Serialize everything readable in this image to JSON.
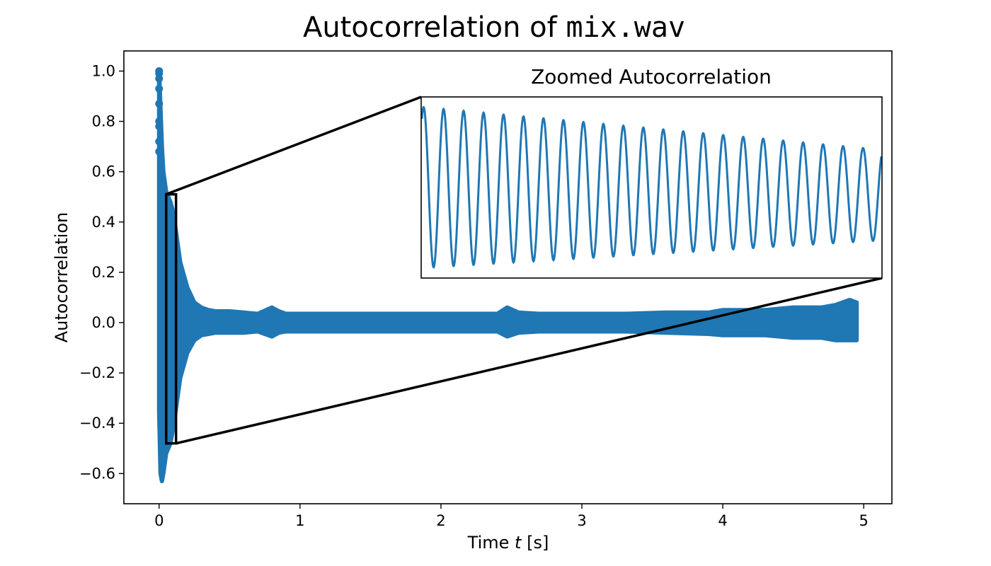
{
  "chart_data": {
    "type": "line",
    "title": {
      "prefix": "Autocorrelation of ",
      "filename": "mix.wav"
    },
    "xlabel": {
      "prefix": "Time ",
      "variable": "t",
      "suffix": " [s]"
    },
    "ylabel": "Autocorrelation",
    "xlim": [
      -0.25,
      5.2
    ],
    "ylim": [
      -0.72,
      1.08
    ],
    "xticks": [
      0,
      1,
      2,
      3,
      4,
      5
    ],
    "yticks": [
      -0.6,
      -0.4,
      -0.2,
      0.0,
      0.2,
      0.4,
      0.6,
      0.8,
      1.0
    ],
    "xtick_labels": [
      "0",
      "1",
      "2",
      "3",
      "4",
      "5"
    ],
    "ytick_labels": [
      "−0.6",
      "−0.4",
      "−0.2",
      "0.0",
      "0.2",
      "0.4",
      "0.6",
      "0.8",
      "1.0"
    ],
    "series_color": "#1f77b4",
    "series": [
      {
        "envelope": {
          "x": [
            0.0,
            0.01,
            0.02,
            0.03,
            0.05,
            0.08,
            0.1,
            0.13,
            0.15,
            0.2,
            0.25,
            0.3,
            0.35,
            0.4,
            0.5,
            0.6,
            0.7,
            0.8,
            0.85,
            0.9,
            1.0,
            1.2,
            1.5,
            1.8,
            2.0,
            2.2,
            2.4,
            2.47,
            2.55,
            2.7,
            3.0,
            3.3,
            3.6,
            3.9,
            4.0,
            4.3,
            4.5,
            4.7,
            4.8,
            4.9,
            4.95
          ],
          "upper": [
            1.0,
            0.85,
            0.7,
            0.6,
            0.52,
            0.48,
            0.44,
            0.32,
            0.24,
            0.14,
            0.08,
            0.06,
            0.05,
            0.045,
            0.045,
            0.04,
            0.035,
            0.06,
            0.045,
            0.035,
            0.035,
            0.035,
            0.035,
            0.035,
            0.035,
            0.035,
            0.035,
            0.06,
            0.04,
            0.035,
            0.035,
            0.035,
            0.04,
            0.04,
            0.05,
            0.05,
            0.06,
            0.06,
            0.07,
            0.09,
            0.08
          ],
          "lower": [
            -0.35,
            -0.6,
            -0.63,
            -0.6,
            -0.52,
            -0.48,
            -0.42,
            -0.3,
            -0.22,
            -0.12,
            -0.07,
            -0.05,
            -0.045,
            -0.04,
            -0.04,
            -0.04,
            -0.035,
            -0.055,
            -0.04,
            -0.035,
            -0.035,
            -0.035,
            -0.035,
            -0.035,
            -0.035,
            -0.035,
            -0.035,
            -0.055,
            -0.04,
            -0.035,
            -0.035,
            -0.035,
            -0.04,
            -0.045,
            -0.05,
            -0.05,
            -0.06,
            -0.06,
            -0.07,
            -0.07,
            -0.07
          ]
        },
        "marker_points": {
          "x": [
            0.0,
            0.0,
            0.0,
            0.0,
            0.0,
            0.0,
            0.0,
            0.0,
            0.0
          ],
          "y": [
            1.0,
            0.99,
            0.97,
            0.93,
            0.87,
            0.8,
            0.78,
            0.72,
            0.68
          ]
        }
      }
    ],
    "zoom_box": {
      "x": [
        0.05,
        0.12
      ],
      "y": [
        -0.48,
        0.51
      ]
    },
    "inset": {
      "title": "Zoomed Autocorrelation",
      "cycles": 23,
      "y_range": [
        0.18,
        0.9
      ],
      "peaks_start": 0.86,
      "peaks_end": 0.69,
      "troughs_start": 0.22,
      "troughs_end": 0.33
    }
  }
}
